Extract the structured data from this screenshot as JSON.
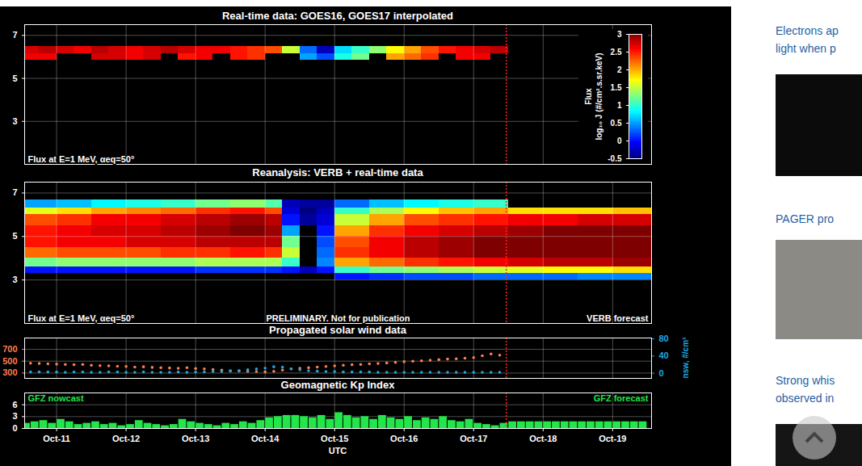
{
  "chart_data": [
    {
      "type": "heatmap",
      "title": "Real-time data: GOES16, GOES17 interpolated",
      "annotations": [
        "Flux at E=1 MeV, αeq=50°"
      ],
      "xlim": [
        10.54,
        19.56
      ],
      "xticks": [
        {
          "value": 11,
          "label": "Oct-11"
        },
        {
          "value": 12,
          "label": "Oct-12"
        },
        {
          "value": 13,
          "label": "Oct-13"
        },
        {
          "value": 14,
          "label": "Oct-14"
        },
        {
          "value": 15,
          "label": "Oct-15"
        },
        {
          "value": 16,
          "label": "Oct-16"
        },
        {
          "value": 17,
          "label": "Oct-17"
        },
        {
          "value": 18,
          "label": "Oct-18"
        },
        {
          "value": 19,
          "label": "Oct-19"
        }
      ],
      "ylim": [
        1,
        7.5
      ],
      "yticks": [
        3,
        5,
        7
      ],
      "grid": true,
      "tick_labels": "y",
      "now": 17.47,
      "x_edges": [
        10.5,
        10.75,
        11,
        11.25,
        11.5,
        11.75,
        12,
        12.25,
        12.5,
        12.75,
        13,
        13.25,
        13.5,
        13.75,
        14,
        14.25,
        14.5,
        14.75,
        15,
        15.25,
        15.5,
        15.75,
        16,
        16.25,
        16.5,
        16.75,
        17,
        17.25,
        17.5
      ],
      "y_edges": [
        5.85,
        6.13,
        6.5
      ],
      "cells": [
        [
          2.6,
          2.7
        ],
        [
          2.6,
          2.8
        ],
        [
          null,
          2.7
        ],
        [
          null,
          2.6
        ],
        [
          2.7,
          2.8
        ],
        [
          2.7,
          2.7
        ],
        [
          2.6,
          2.6
        ],
        [
          2.7,
          2.7
        ],
        [
          null,
          2.8
        ],
        [
          2.5,
          2.7
        ],
        [
          2.6,
          2.6
        ],
        [
          null,
          2.6
        ],
        [
          2.5,
          2.5
        ],
        [
          2.4,
          2.4
        ],
        [
          null,
          2.3
        ],
        [
          null,
          1.5
        ],
        [
          0.5,
          0.3
        ],
        [
          0.2,
          -0.3
        ],
        [
          0.9,
          0.7
        ],
        [
          1.2,
          1.0
        ],
        [
          null,
          1.3
        ],
        [
          2.0,
          1.7
        ],
        [
          2.2,
          2.0
        ],
        [
          2.4,
          2.3
        ],
        [
          null,
          2.5
        ],
        [
          2.6,
          2.6
        ],
        [
          2.6,
          2.7
        ],
        [
          null,
          2.8
        ]
      ],
      "colorbar": {
        "label": [
          "Flux",
          "log₁₀ J (#/cm².s.sr.keV)"
        ],
        "lim": [
          -0.5,
          3
        ],
        "ticks": [
          -0.5,
          0,
          0.5,
          1,
          1.5,
          2,
          2.5,
          3
        ]
      }
    },
    {
      "type": "heatmap",
      "title": "Reanalysis: VERB + real-time data",
      "annotations": [
        "Flux at E=1 MeV, αeq=50°",
        "PRELIMINARY. Not for publication",
        "VERB forecast"
      ],
      "xlim": [
        10.54,
        19.56
      ],
      "xticks": [
        {
          "value": 11,
          "label": "Oct-11"
        },
        {
          "value": 12,
          "label": "Oct-12"
        },
        {
          "value": 13,
          "label": "Oct-13"
        },
        {
          "value": 14,
          "label": "Oct-14"
        },
        {
          "value": 15,
          "label": "Oct-15"
        },
        {
          "value": 16,
          "label": "Oct-16"
        },
        {
          "value": 17,
          "label": "Oct-17"
        },
        {
          "value": 18,
          "label": "Oct-18"
        },
        {
          "value": 19,
          "label": "Oct-19"
        }
      ],
      "ylim": [
        1,
        7.5
      ],
      "yticks": [
        3,
        5,
        7
      ],
      "grid": true,
      "tick_labels": "y",
      "now": 17.47,
      "x_edges": [
        10.5,
        11,
        11.5,
        12,
        12.5,
        13,
        13.5,
        14,
        14.25,
        14.5,
        14.75,
        15,
        15.5,
        16,
        16.5,
        17,
        17.5,
        18,
        18.5,
        19,
        19.6
      ],
      "y_edges": [
        3.0,
        3.3,
        3.6,
        4.0,
        4.5,
        5.0,
        5.5,
        6.0,
        6.3,
        6.7
      ],
      "cells": [
        [
          null,
          0.0,
          1.2,
          2.2,
          2.5,
          2.5,
          2.3,
          1.6,
          0.5
        ],
        [
          null,
          0.0,
          1.3,
          2.3,
          2.6,
          2.6,
          2.4,
          1.8,
          0.6
        ],
        [
          null,
          0.0,
          1.3,
          2.3,
          2.6,
          2.7,
          2.6,
          2.0,
          0.8
        ],
        [
          null,
          0.0,
          1.3,
          2.3,
          2.7,
          2.7,
          2.6,
          2.1,
          0.9
        ],
        [
          null,
          0.0,
          1.3,
          2.4,
          2.7,
          2.8,
          2.7,
          2.2,
          1.0
        ],
        [
          null,
          0.1,
          1.4,
          2.4,
          2.8,
          2.9,
          2.8,
          2.4,
          1.2
        ],
        [
          null,
          0.1,
          1.4,
          2.5,
          2.8,
          3.0,
          2.9,
          2.5,
          1.3
        ],
        [
          null,
          0.1,
          1.4,
          2.4,
          2.8,
          2.9,
          2.8,
          2.3,
          1.1
        ],
        [
          null,
          0.0,
          1.0,
          1.5,
          1.2,
          0.5,
          0.0,
          -0.2,
          -0.3
        ],
        [
          null,
          -0.3,
          null,
          null,
          null,
          null,
          -0.4,
          -0.5,
          -0.4
        ],
        [
          null,
          0.0,
          0.4,
          0.3,
          0.2,
          0.0,
          -0.2,
          -0.3,
          -0.4
        ],
        [
          0.0,
          1.0,
          2.0,
          2.4,
          2.3,
          2.0,
          1.5,
          1.0,
          0.3
        ],
        [
          0.1,
          1.2,
          2.2,
          2.6,
          2.6,
          2.4,
          2.0,
          1.4,
          0.6
        ],
        [
          0.2,
          1.3,
          2.4,
          2.8,
          2.8,
          2.6,
          2.3,
          1.7,
          0.8
        ],
        [
          0.2,
          1.4,
          2.5,
          2.9,
          2.9,
          2.7,
          2.4,
          1.9,
          0.9
        ],
        [
          0.3,
          1.5,
          2.6,
          3.0,
          3.0,
          2.8,
          2.5,
          2.0,
          1.0
        ],
        [
          0.3,
          1.6,
          2.7,
          3.0,
          3.0,
          2.9,
          2.6,
          1.8,
          null
        ],
        [
          0.3,
          1.7,
          2.8,
          3.0,
          3.0,
          3.0,
          2.6,
          1.8,
          null
        ],
        [
          0.4,
          1.7,
          2.8,
          3.0,
          3.0,
          3.0,
          2.7,
          1.8,
          null
        ],
        [
          0.4,
          1.8,
          2.9,
          3.0,
          3.0,
          3.0,
          2.7,
          1.9,
          null
        ]
      ]
    },
    {
      "type": "scatter",
      "title": "Propagated solar wind data",
      "xlim": [
        10.54,
        19.56
      ],
      "xticks": [
        {
          "value": 11,
          "label": "Oct-11"
        },
        {
          "value": 12,
          "label": "Oct-12"
        },
        {
          "value": 13,
          "label": "Oct-13"
        },
        {
          "value": 14,
          "label": "Oct-14"
        },
        {
          "value": 15,
          "label": "Oct-15"
        },
        {
          "value": 16,
          "label": "Oct-16"
        },
        {
          "value": 17,
          "label": "Oct-17"
        },
        {
          "value": 18,
          "label": "Oct-18"
        },
        {
          "value": 19,
          "label": "Oct-19"
        }
      ],
      "ylim": [
        210,
        890
      ],
      "yticks": [
        300,
        500,
        700
      ],
      "y2lim": [
        -12,
        82
      ],
      "y2ticks": [
        0,
        40,
        80
      ],
      "y2label": "nsw, #/cm³",
      "grid": true,
      "tick_labels": "y",
      "now": 17.47,
      "x": [
        10.625,
        10.75,
        10.875,
        11,
        11.125,
        11.25,
        11.375,
        11.5,
        11.625,
        11.75,
        11.875,
        12,
        12.125,
        12.25,
        12.375,
        12.5,
        12.625,
        12.75,
        12.875,
        13,
        13.125,
        13.25,
        13.375,
        13.5,
        13.625,
        13.75,
        13.875,
        14,
        14.125,
        14.25,
        14.375,
        14.5,
        14.625,
        14.75,
        14.875,
        15,
        15.125,
        15.25,
        15.375,
        15.5,
        15.625,
        15.75,
        15.875,
        16,
        16.125,
        16.25,
        16.375,
        16.5,
        16.625,
        16.75,
        16.875,
        17,
        17.125,
        17.25,
        17.375
      ],
      "series": [
        {
          "color": "#ff7f4f",
          "marker": "circle",
          "values": [
            465,
            460,
            455,
            450,
            445,
            440,
            445,
            430,
            425,
            420,
            415,
            410,
            400,
            405,
            395,
            390,
            385,
            380,
            390,
            375,
            370,
            360,
            350,
            340,
            335,
            330,
            325,
            320,
            330,
            350,
            370,
            380,
            390,
            400,
            410,
            420,
            430,
            440,
            445,
            455,
            460,
            470,
            480,
            490,
            500,
            505,
            515,
            525,
            535,
            540,
            550,
            560,
            590,
            620,
            600
          ]
        },
        {
          "color": "#1ea8e0",
          "marker": "circle",
          "axis": "y2",
          "values": [
            3,
            3,
            3,
            3,
            2,
            3,
            3,
            2,
            2,
            3,
            3,
            2,
            2,
            3,
            2,
            2,
            2,
            3,
            2,
            3,
            3,
            4,
            4,
            5,
            6,
            8,
            10,
            12,
            15,
            14,
            10,
            8,
            6,
            5,
            4,
            4,
            3,
            3,
            3,
            3,
            2,
            2,
            2,
            2,
            2,
            2,
            2,
            2,
            2,
            2,
            2,
            2,
            2,
            2,
            2
          ]
        }
      ]
    },
    {
      "type": "bar",
      "title": "Geomagnetic Kp Index",
      "annotations": [
        "GFZ nowcast",
        "GFZ forecast"
      ],
      "xlabel": "UTC",
      "xlim": [
        10.54,
        19.56
      ],
      "xticks": [
        {
          "value": 11,
          "label": "Oct-11"
        },
        {
          "value": 12,
          "label": "Oct-12"
        },
        {
          "value": 13,
          "label": "Oct-13"
        },
        {
          "value": 14,
          "label": "Oct-14"
        },
        {
          "value": 15,
          "label": "Oct-15"
        },
        {
          "value": 16,
          "label": "Oct-16"
        },
        {
          "value": 17,
          "label": "Oct-17"
        },
        {
          "value": 18,
          "label": "Oct-18"
        },
        {
          "value": 19,
          "label": "Oct-19"
        }
      ],
      "ylim": [
        0,
        9
      ],
      "yticks": [
        0,
        3,
        6
      ],
      "grid": true,
      "now": 17.47,
      "color": "#22e64a",
      "bins": [
        10.5,
        10.625,
        10.75,
        10.875,
        11,
        11.125,
        11.25,
        11.375,
        11.5,
        11.625,
        11.75,
        11.875,
        12,
        12.125,
        12.25,
        12.375,
        12.5,
        12.625,
        12.75,
        12.875,
        13,
        13.125,
        13.25,
        13.375,
        13.5,
        13.625,
        13.75,
        13.875,
        14,
        14.125,
        14.25,
        14.375,
        14.5,
        14.625,
        14.75,
        14.875,
        15,
        15.125,
        15.25,
        15.375,
        15.5,
        15.625,
        15.75,
        15.875,
        16,
        16.125,
        16.25,
        16.375,
        16.5,
        16.625,
        16.75,
        16.875,
        17,
        17.125,
        17.25,
        17.375,
        17.5,
        17.625,
        17.75,
        17.875,
        18,
        18.125,
        18.25,
        18.375,
        18.5,
        18.625,
        18.75,
        18.875,
        19,
        19.125,
        19.25,
        19.375,
        19.5
      ],
      "values": [
        1.3,
        1.7,
        2.0,
        1.3,
        2.3,
        1.7,
        1.0,
        1.3,
        1.7,
        1.0,
        1.3,
        0.7,
        1.0,
        2.0,
        1.3,
        1.0,
        0.7,
        1.0,
        2.3,
        1.7,
        1.3,
        1.0,
        0.7,
        1.3,
        1.0,
        1.7,
        1.3,
        2.0,
        2.7,
        3.0,
        3.3,
        3.3,
        3.0,
        2.7,
        3.3,
        2.3,
        4.0,
        3.3,
        2.7,
        3.0,
        2.3,
        3.3,
        2.7,
        2.3,
        3.0,
        2.0,
        2.7,
        2.3,
        3.0,
        2.0,
        1.7,
        2.3,
        1.3,
        1.0,
        0.7,
        1.3,
        1.7,
        1.7,
        1.7,
        1.7,
        1.7,
        1.7,
        1.7,
        1.7,
        1.7,
        1.7,
        1.7,
        1.7,
        1.7,
        1.7,
        1.7,
        1.7
      ]
    }
  ],
  "sidebar": [
    {
      "lines": [
        "Electrons ap",
        "light when p"
      ]
    },
    {
      "lines": [
        "PAGER pro"
      ]
    },
    {
      "lines": [
        "Strong whis",
        "observed in"
      ]
    }
  ]
}
